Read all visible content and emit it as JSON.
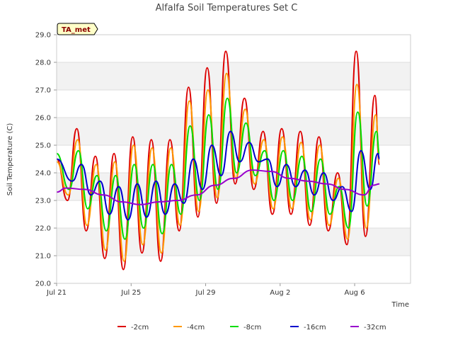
{
  "chart_data": {
    "type": "line",
    "title": "Alfalfa Soil Temperatures Set C",
    "xlabel": "Time",
    "ylabel": "Soil Temperature (C)",
    "badge": "TA_met",
    "ylim": [
      20.0,
      29.0
    ],
    "xlim": [
      "2023-07-21",
      "2023-08-09"
    ],
    "y_ticks": [
      "20.0",
      "21.0",
      "22.0",
      "23.0",
      "24.0",
      "25.0",
      "26.0",
      "27.0",
      "28.0",
      "29.0"
    ],
    "x_ticks": [
      {
        "label": "Jul 21",
        "x": "2023-07-21"
      },
      {
        "label": "Jul 25",
        "x": "2023-07-25"
      },
      {
        "label": "Jul 29",
        "x": "2023-07-29"
      },
      {
        "label": "Aug 2",
        "x": "2023-08-02"
      },
      {
        "label": "Aug 6",
        "x": "2023-08-06"
      }
    ],
    "grid": "horizontal alternating bands",
    "legend_position": "bottom",
    "series": [
      {
        "name": "-2cm",
        "color": "#dd0000",
        "points": [
          [
            "2023-07-21 00:00",
            24.5
          ],
          [
            "2023-07-21 14:00",
            23.0
          ],
          [
            "2023-07-22 02:00",
            25.6
          ],
          [
            "2023-07-22 14:00",
            21.9
          ],
          [
            "2023-07-23 02:00",
            24.6
          ],
          [
            "2023-07-23 14:00",
            20.9
          ],
          [
            "2023-07-24 02:00",
            24.7
          ],
          [
            "2023-07-24 14:00",
            20.5
          ],
          [
            "2023-07-25 02:00",
            25.3
          ],
          [
            "2023-07-25 14:00",
            21.1
          ],
          [
            "2023-07-26 02:00",
            25.2
          ],
          [
            "2023-07-26 14:00",
            20.8
          ],
          [
            "2023-07-27 02:00",
            25.2
          ],
          [
            "2023-07-27 14:00",
            21.9
          ],
          [
            "2023-07-28 02:00",
            27.1
          ],
          [
            "2023-07-28 14:00",
            22.4
          ],
          [
            "2023-07-29 02:00",
            27.8
          ],
          [
            "2023-07-29 14:00",
            22.9
          ],
          [
            "2023-07-30 02:00",
            28.4
          ],
          [
            "2023-07-30 14:00",
            23.6
          ],
          [
            "2023-07-31 02:00",
            26.7
          ],
          [
            "2023-07-31 14:00",
            23.4
          ],
          [
            "2023-08-01 02:00",
            25.5
          ],
          [
            "2023-08-01 14:00",
            22.5
          ],
          [
            "2023-08-02 02:00",
            25.6
          ],
          [
            "2023-08-02 14:00",
            22.5
          ],
          [
            "2023-08-03 02:00",
            25.5
          ],
          [
            "2023-08-03 14:00",
            22.1
          ],
          [
            "2023-08-04 02:00",
            25.3
          ],
          [
            "2023-08-04 14:00",
            21.9
          ],
          [
            "2023-08-05 02:00",
            24.0
          ],
          [
            "2023-08-05 14:00",
            21.4
          ],
          [
            "2023-08-06 02:00",
            28.4
          ],
          [
            "2023-08-06 14:00",
            21.7
          ],
          [
            "2023-08-07 02:00",
            26.8
          ],
          [
            "2023-08-07 08:00",
            24.3
          ]
        ]
      },
      {
        "name": "-4cm",
        "color": "#ff9900",
        "points": [
          [
            "2023-07-21 00:00",
            24.4
          ],
          [
            "2023-07-21 15:00",
            23.2
          ],
          [
            "2023-07-22 03:00",
            25.2
          ],
          [
            "2023-07-22 15:00",
            22.1
          ],
          [
            "2023-07-23 03:00",
            24.3
          ],
          [
            "2023-07-23 15:00",
            21.2
          ],
          [
            "2023-07-24 03:00",
            24.4
          ],
          [
            "2023-07-24 15:00",
            20.8
          ],
          [
            "2023-07-25 03:00",
            25.0
          ],
          [
            "2023-07-25 15:00",
            21.4
          ],
          [
            "2023-07-26 03:00",
            24.9
          ],
          [
            "2023-07-26 15:00",
            21.1
          ],
          [
            "2023-07-27 03:00",
            24.9
          ],
          [
            "2023-07-27 15:00",
            22.1
          ],
          [
            "2023-07-28 03:00",
            26.6
          ],
          [
            "2023-07-28 15:00",
            22.6
          ],
          [
            "2023-07-29 03:00",
            27.0
          ],
          [
            "2023-07-29 15:00",
            23.1
          ],
          [
            "2023-07-30 03:00",
            27.6
          ],
          [
            "2023-07-30 15:00",
            23.8
          ],
          [
            "2023-07-31 03:00",
            26.3
          ],
          [
            "2023-07-31 15:00",
            23.6
          ],
          [
            "2023-08-01 03:00",
            25.2
          ],
          [
            "2023-08-01 15:00",
            22.7
          ],
          [
            "2023-08-02 03:00",
            25.3
          ],
          [
            "2023-08-02 15:00",
            22.7
          ],
          [
            "2023-08-03 03:00",
            25.1
          ],
          [
            "2023-08-03 15:00",
            22.3
          ],
          [
            "2023-08-04 03:00",
            25.0
          ],
          [
            "2023-08-04 15:00",
            22.1
          ],
          [
            "2023-08-05 03:00",
            23.8
          ],
          [
            "2023-08-05 15:00",
            21.6
          ],
          [
            "2023-08-06 03:00",
            27.2
          ],
          [
            "2023-08-06 15:00",
            22.0
          ],
          [
            "2023-08-07 03:00",
            26.1
          ],
          [
            "2023-08-07 08:00",
            24.4
          ]
        ]
      },
      {
        "name": "-8cm",
        "color": "#00dd00",
        "points": [
          [
            "2023-07-21 00:00",
            24.7
          ],
          [
            "2023-07-21 16:00",
            23.4
          ],
          [
            "2023-07-22 04:00",
            24.8
          ],
          [
            "2023-07-22 16:00",
            22.7
          ],
          [
            "2023-07-23 04:00",
            23.9
          ],
          [
            "2023-07-23 16:00",
            21.9
          ],
          [
            "2023-07-24 04:00",
            23.9
          ],
          [
            "2023-07-24 16:00",
            21.6
          ],
          [
            "2023-07-25 04:00",
            24.3
          ],
          [
            "2023-07-25 16:00",
            22.0
          ],
          [
            "2023-07-26 04:00",
            24.3
          ],
          [
            "2023-07-26 16:00",
            21.8
          ],
          [
            "2023-07-27 04:00",
            24.3
          ],
          [
            "2023-07-27 16:00",
            22.5
          ],
          [
            "2023-07-28 04:00",
            25.7
          ],
          [
            "2023-07-28 16:00",
            23.0
          ],
          [
            "2023-07-29 04:00",
            26.1
          ],
          [
            "2023-07-29 16:00",
            23.4
          ],
          [
            "2023-07-30 04:00",
            26.7
          ],
          [
            "2023-07-30 16:00",
            24.0
          ],
          [
            "2023-07-31 04:00",
            25.8
          ],
          [
            "2023-07-31 16:00",
            23.9
          ],
          [
            "2023-08-01 04:00",
            24.8
          ],
          [
            "2023-08-01 16:00",
            23.0
          ],
          [
            "2023-08-02 04:00",
            24.8
          ],
          [
            "2023-08-02 16:00",
            23.0
          ],
          [
            "2023-08-03 04:00",
            24.6
          ],
          [
            "2023-08-03 16:00",
            22.6
          ],
          [
            "2023-08-04 04:00",
            24.5
          ],
          [
            "2023-08-04 16:00",
            22.5
          ],
          [
            "2023-08-05 04:00",
            23.5
          ],
          [
            "2023-08-05 16:00",
            22.0
          ],
          [
            "2023-08-06 04:00",
            26.2
          ],
          [
            "2023-08-06 16:00",
            22.8
          ],
          [
            "2023-08-07 04:00",
            25.5
          ],
          [
            "2023-08-07 08:00",
            24.7
          ]
        ]
      },
      {
        "name": "-16cm",
        "color": "#0000cc",
        "points": [
          [
            "2023-07-21 00:00",
            24.5
          ],
          [
            "2023-07-21 20:00",
            23.7
          ],
          [
            "2023-07-22 08:00",
            24.3
          ],
          [
            "2023-07-22 20:00",
            23.2
          ],
          [
            "2023-07-23 08:00",
            23.7
          ],
          [
            "2023-07-23 20:00",
            22.5
          ],
          [
            "2023-07-24 08:00",
            23.5
          ],
          [
            "2023-07-24 20:00",
            22.3
          ],
          [
            "2023-07-25 08:00",
            23.6
          ],
          [
            "2023-07-25 20:00",
            22.4
          ],
          [
            "2023-07-26 08:00",
            23.7
          ],
          [
            "2023-07-26 20:00",
            22.5
          ],
          [
            "2023-07-27 08:00",
            23.6
          ],
          [
            "2023-07-27 20:00",
            22.9
          ],
          [
            "2023-07-28 08:00",
            24.5
          ],
          [
            "2023-07-28 20:00",
            23.4
          ],
          [
            "2023-07-29 08:00",
            25.0
          ],
          [
            "2023-07-29 20:00",
            23.9
          ],
          [
            "2023-07-30 08:00",
            25.5
          ],
          [
            "2023-07-30 20:00",
            24.4
          ],
          [
            "2023-07-31 08:00",
            25.1
          ],
          [
            "2023-07-31 20:00",
            24.4
          ],
          [
            "2023-08-01 08:00",
            24.5
          ],
          [
            "2023-08-01 20:00",
            23.5
          ],
          [
            "2023-08-02 08:00",
            24.3
          ],
          [
            "2023-08-02 20:00",
            23.5
          ],
          [
            "2023-08-03 08:00",
            24.1
          ],
          [
            "2023-08-03 20:00",
            23.2
          ],
          [
            "2023-08-04 08:00",
            24.0
          ],
          [
            "2023-08-04 20:00",
            23.0
          ],
          [
            "2023-08-05 08:00",
            23.5
          ],
          [
            "2023-08-05 20:00",
            22.6
          ],
          [
            "2023-08-06 08:00",
            24.8
          ],
          [
            "2023-08-06 20:00",
            23.4
          ],
          [
            "2023-08-07 06:00",
            24.7
          ],
          [
            "2023-08-07 08:00",
            24.5
          ]
        ]
      },
      {
        "name": "-32cm",
        "color": "#9900cc",
        "points": [
          [
            "2023-07-21 00:00",
            23.3
          ],
          [
            "2023-07-21 12:00",
            23.45
          ],
          [
            "2023-07-22 12:00",
            23.4
          ],
          [
            "2023-07-23 12:00",
            23.2
          ],
          [
            "2023-07-24 12:00",
            22.95
          ],
          [
            "2023-07-25 12:00",
            22.85
          ],
          [
            "2023-07-26 12:00",
            22.95
          ],
          [
            "2023-07-27 12:00",
            23.0
          ],
          [
            "2023-07-28 12:00",
            23.2
          ],
          [
            "2023-07-29 12:00",
            23.55
          ],
          [
            "2023-07-30 12:00",
            23.8
          ],
          [
            "2023-07-31 12:00",
            24.1
          ],
          [
            "2023-08-01 12:00",
            24.05
          ],
          [
            "2023-08-02 12:00",
            23.8
          ],
          [
            "2023-08-03 12:00",
            23.7
          ],
          [
            "2023-08-04 12:00",
            23.6
          ],
          [
            "2023-08-05 12:00",
            23.4
          ],
          [
            "2023-08-06 12:00",
            23.2
          ],
          [
            "2023-08-07 00:00",
            23.55
          ],
          [
            "2023-08-07 08:00",
            23.6
          ]
        ]
      }
    ]
  }
}
